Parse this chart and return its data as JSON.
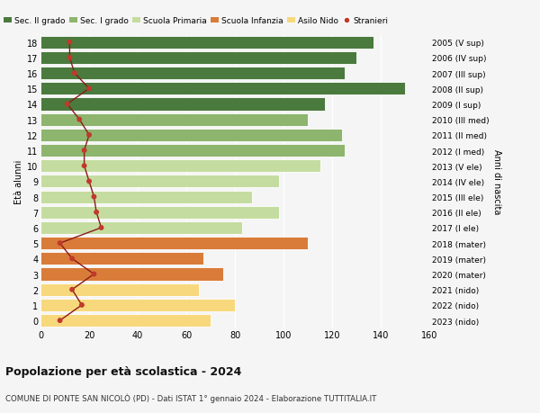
{
  "ages": [
    0,
    1,
    2,
    3,
    4,
    5,
    6,
    7,
    8,
    9,
    10,
    11,
    12,
    13,
    14,
    15,
    16,
    17,
    18
  ],
  "right_labels": [
    "2023 (nido)",
    "2022 (nido)",
    "2021 (nido)",
    "2020 (mater)",
    "2019 (mater)",
    "2018 (mater)",
    "2017 (I ele)",
    "2016 (II ele)",
    "2015 (III ele)",
    "2014 (IV ele)",
    "2013 (V ele)",
    "2012 (I med)",
    "2011 (II med)",
    "2010 (III med)",
    "2009 (I sup)",
    "2008 (II sup)",
    "2007 (III sup)",
    "2006 (IV sup)",
    "2005 (V sup)"
  ],
  "bar_values": [
    70,
    80,
    65,
    75,
    67,
    110,
    83,
    98,
    87,
    98,
    115,
    125,
    124,
    110,
    117,
    150,
    125,
    130,
    137
  ],
  "stranieri_values": [
    8,
    17,
    13,
    22,
    13,
    8,
    25,
    23,
    22,
    20,
    18,
    18,
    20,
    16,
    11,
    20,
    14,
    12,
    12
  ],
  "bar_colors": {
    "asilo_nido": "#f7d87c",
    "scuola_infanzia": "#d97c3a",
    "scuola_primaria": "#c5dca0",
    "sec_I_grado": "#8db56e",
    "sec_II_grado": "#4a7a3d"
  },
  "age_to_school": {
    "0": "asilo_nido",
    "1": "asilo_nido",
    "2": "asilo_nido",
    "3": "scuola_infanzia",
    "4": "scuola_infanzia",
    "5": "scuola_infanzia",
    "6": "scuola_primaria",
    "7": "scuola_primaria",
    "8": "scuola_primaria",
    "9": "scuola_primaria",
    "10": "scuola_primaria",
    "11": "sec_I_grado",
    "12": "sec_I_grado",
    "13": "sec_I_grado",
    "14": "sec_II_grado",
    "15": "sec_II_grado",
    "16": "sec_II_grado",
    "17": "sec_II_grado",
    "18": "sec_II_grado"
  },
  "legend_labels": [
    "Sec. II grado",
    "Sec. I grado",
    "Scuola Primaria",
    "Scuola Infanzia",
    "Asilo Nido",
    "Stranieri"
  ],
  "legend_colors": [
    "#4a7a3d",
    "#8db56e",
    "#c5dca0",
    "#d97c3a",
    "#f7d87c",
    "#c0392b"
  ],
  "title": "Popolazione per età scolastica - 2024",
  "subtitle": "COMUNE DI PONTE SAN NICOLÒ (PD) - Dati ISTAT 1° gennaio 2024 - Elaborazione TUTTITALIA.IT",
  "ylabel_left": "Età alunni",
  "ylabel_right": "Anni di nascita",
  "xlim": [
    0,
    160
  ],
  "background_color": "#f5f5f5",
  "stranieri_color": "#c0392b",
  "stranieri_line_color": "#8b1a1a"
}
